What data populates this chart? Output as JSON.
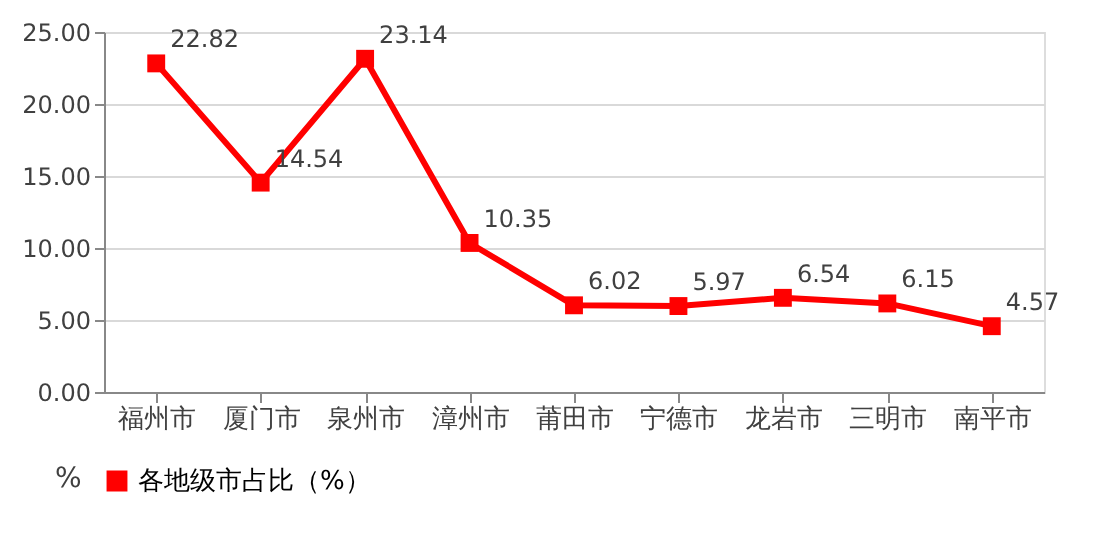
{
  "chart_data": {
    "type": "line",
    "ylabel": "%",
    "categories": [
      "福州市",
      "厦门市",
      "泉州市",
      "漳州市",
      "莆田市",
      "宁德市",
      "龙岩市",
      "三明市",
      "南平市"
    ],
    "series": [
      {
        "name": "各地级市占比（%）",
        "color": "#ff0000",
        "values": [
          22.82,
          14.54,
          23.14,
          10.35,
          6.02,
          5.97,
          6.54,
          6.15,
          4.57
        ]
      }
    ],
    "ylim": [
      0,
      25
    ],
    "yticks": [
      {
        "value": 0,
        "label": "0.00"
      },
      {
        "value": 5,
        "label": "5.00"
      },
      {
        "value": 10,
        "label": "10.00"
      },
      {
        "value": 15,
        "label": "15.00"
      },
      {
        "value": 20,
        "label": "20.00"
      },
      {
        "value": 25,
        "label": "25.00"
      }
    ],
    "grid": "y",
    "legend": "bottom",
    "marker": "square",
    "line_style": "solid",
    "data_labels": true
  }
}
